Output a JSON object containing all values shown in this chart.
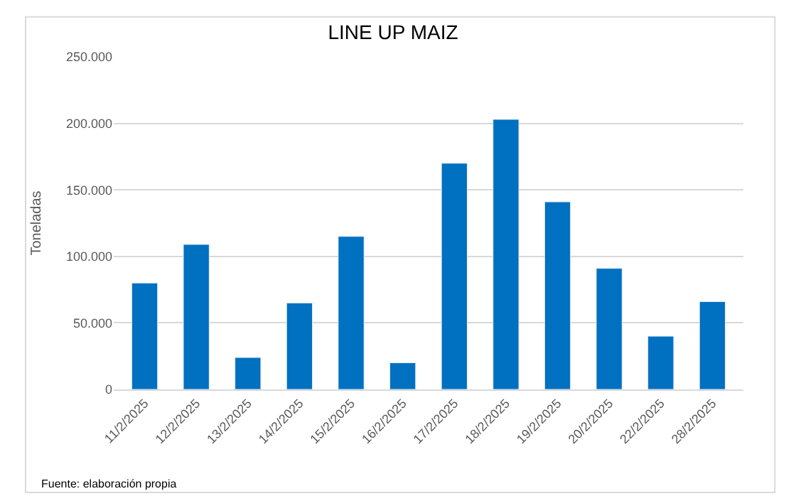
{
  "chart_data": {
    "type": "bar",
    "title": "LINE UP MAIZ",
    "ylabel": "Toneladas",
    "categories": [
      "11/2/2025",
      "12/2/2025",
      "13/2/2025",
      "14/2/2025",
      "15/2/2025",
      "16/2/2025",
      "17/2/2025",
      "18/2/2025",
      "19/2/2025",
      "20/2/2025",
      "22/2/2025",
      "28/2/2025"
    ],
    "values": [
      80000,
      109000,
      24000,
      65000,
      115000,
      20000,
      170000,
      203000,
      141000,
      91000,
      40000,
      66000
    ],
    "color": "#0070c0",
    "ylim": [
      0,
      250000
    ],
    "yticks": [
      0,
      {
        "value": 50000,
        "label": "50.000"
      },
      {
        "value": 100000,
        "label": "100.000"
      },
      {
        "value": 150000,
        "label": "150.000"
      },
      {
        "value": 200000,
        "label": "200.000"
      },
      {
        "value": 250000,
        "label": "250.000"
      }
    ],
    "grid": "y",
    "annotations": [
      "Fuente: elaboración propia"
    ]
  }
}
